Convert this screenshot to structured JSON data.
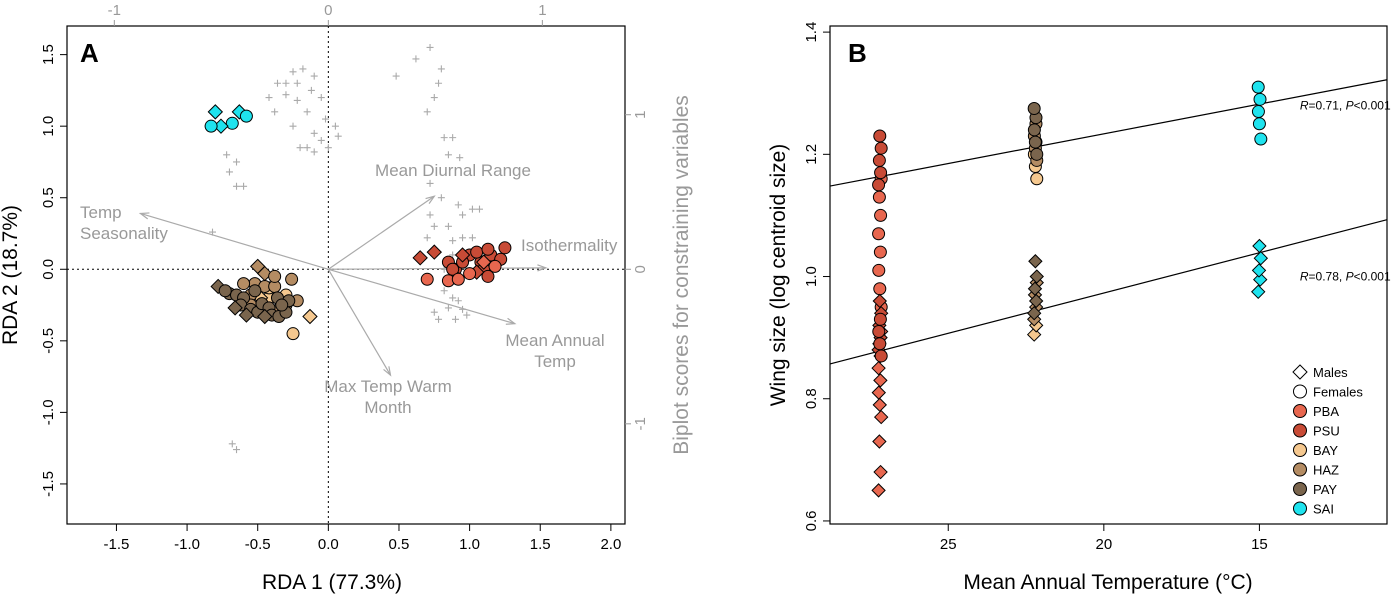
{
  "chart_data": [
    {
      "type": "scatter",
      "panel_label": "A",
      "xlabel": "RDA 1 (77.3%)",
      "ylabel": "RDA 2 (18.7%)",
      "y2label": "Biplot scores for constraining variables",
      "xlim": [
        -1.85,
        2.1
      ],
      "ylim": [
        -1.78,
        1.7
      ],
      "x_ticks": [
        "-1.5",
        "-1.0",
        "-0.5",
        "0.0",
        "0.5",
        "1.0",
        "1.5",
        "2.0"
      ],
      "y_ticks": [
        "-1.5",
        "-1.0",
        "-0.5",
        "0.0",
        "0.5",
        "1.0",
        "1.5"
      ],
      "top_ticks": [
        "-1",
        "0",
        "1"
      ],
      "right_ticks": [
        "-1",
        "0",
        "1"
      ],
      "biplot_arrows": [
        {
          "label_lines": [
            "Temp",
            "Seasonality"
          ],
          "x": -1.33,
          "y": 0.39
        },
        {
          "label_lines": [
            "Mean Diurnal Range"
          ],
          "x": 0.75,
          "y": 0.51
        },
        {
          "label_lines": [
            "Isothermality"
          ],
          "x": 1.54,
          "y": 0.01
        },
        {
          "label_lines": [
            "Mean Annual",
            "Temp"
          ],
          "x": 1.32,
          "y": -0.38
        },
        {
          "label_lines": [
            "Max Temp Warm",
            "Month"
          ],
          "x": 0.44,
          "y": -0.74
        }
      ],
      "crosses": [
        [
          0.72,
          1.55
        ],
        [
          0.62,
          1.47
        ],
        [
          0.48,
          1.35
        ],
        [
          0.8,
          1.4
        ],
        [
          0.78,
          1.3
        ],
        [
          0.75,
          1.2
        ],
        [
          0.7,
          1.1
        ],
        [
          0.82,
          0.92
        ],
        [
          0.88,
          0.92
        ],
        [
          0.85,
          0.8
        ],
        [
          0.93,
          0.78
        ],
        [
          0.72,
          0.6
        ],
        [
          0.8,
          0.5
        ],
        [
          0.92,
          0.45
        ],
        [
          0.95,
          0.38
        ],
        [
          1.02,
          0.42
        ],
        [
          1.07,
          0.42
        ],
        [
          0.72,
          0.38
        ],
        [
          0.7,
          0.22
        ],
        [
          0.75,
          0.3
        ],
        [
          0.85,
          0.3
        ],
        [
          0.88,
          0.2
        ],
        [
          0.88,
          0.1
        ],
        [
          0.95,
          0.22
        ],
        [
          1.02,
          0.22
        ],
        [
          0.82,
          0.0
        ],
        [
          0.82,
          -0.15
        ],
        [
          0.88,
          -0.2
        ],
        [
          0.92,
          -0.22
        ],
        [
          0.95,
          -0.28
        ],
        [
          0.85,
          -0.27
        ],
        [
          0.75,
          -0.3
        ],
        [
          0.78,
          -0.35
        ],
        [
          0.9,
          -0.35
        ],
        [
          0.98,
          -0.32
        ],
        [
          0.88,
          -0.05
        ],
        [
          -0.1,
          1.35
        ],
        [
          -0.18,
          1.4
        ],
        [
          -0.25,
          1.38
        ],
        [
          -0.3,
          1.3
        ],
        [
          -0.22,
          1.3
        ],
        [
          -0.12,
          1.25
        ],
        [
          -0.36,
          1.3
        ],
        [
          -0.42,
          1.2
        ],
        [
          -0.38,
          1.1
        ],
        [
          -0.3,
          1.22
        ],
        [
          -0.22,
          1.18
        ],
        [
          -0.15,
          1.1
        ],
        [
          -0.05,
          1.2
        ],
        [
          -0.02,
          1.05
        ],
        [
          0.05,
          1.0
        ],
        [
          0.07,
          0.93
        ],
        [
          -0.1,
          0.95
        ],
        [
          -0.15,
          0.85
        ],
        [
          -0.2,
          0.85
        ],
        [
          -0.1,
          0.82
        ],
        [
          -0.05,
          0.9
        ],
        [
          0.0,
          0.85
        ],
        [
          -0.25,
          1.0
        ],
        [
          -0.72,
          0.8
        ],
        [
          -0.65,
          0.75
        ],
        [
          -0.7,
          0.68
        ],
        [
          -0.65,
          0.58
        ],
        [
          -0.6,
          0.58
        ],
        [
          -0.82,
          0.26
        ],
        [
          -0.68,
          -1.22
        ],
        [
          -0.65,
          -1.26
        ]
      ],
      "categories": [
        "PBA",
        "PSU",
        "BAY",
        "HAZ",
        "PAY",
        "SAI"
      ],
      "series": [
        {
          "name": "SAI",
          "color": "#1fe3ee",
          "values": [
            [
              -0.63,
              1.1,
              1
            ],
            [
              -0.58,
              1.07,
              0
            ],
            [
              -0.68,
              1.02,
              0
            ],
            [
              -0.76,
              1.0,
              1
            ],
            [
              -0.83,
              1.0,
              0
            ],
            [
              -0.8,
              1.1,
              1
            ]
          ]
        },
        {
          "name": "PSU",
          "color": "#c84b36",
          "values": [
            [
              0.75,
              0.12,
              1
            ],
            [
              1.0,
              0.1,
              0
            ],
            [
              1.08,
              0.05,
              0
            ],
            [
              1.2,
              0.06,
              0
            ],
            [
              1.15,
              0.1,
              0
            ],
            [
              1.25,
              0.15,
              0
            ],
            [
              1.22,
              0.07,
              0
            ],
            [
              1.1,
              0.0,
              0
            ],
            [
              0.85,
              0.05,
              0
            ],
            [
              0.9,
              0.0,
              0
            ],
            [
              0.95,
              0.05,
              0
            ],
            [
              1.05,
              0.12,
              0
            ],
            [
              1.13,
              0.14,
              0
            ],
            [
              0.9,
              -0.06,
              0
            ],
            [
              1.13,
              -0.05,
              0
            ],
            [
              1.05,
              -0.02,
              1
            ],
            [
              0.65,
              0.08,
              1
            ],
            [
              0.95,
              0.1,
              1
            ],
            [
              0.88,
              0.0,
              0
            ]
          ]
        },
        {
          "name": "PBA",
          "color": "#e8674f",
          "values": [
            [
              0.7,
              -0.07,
              0
            ],
            [
              1.0,
              -0.03,
              0
            ],
            [
              1.1,
              0.05,
              1
            ],
            [
              1.18,
              0.02,
              0
            ],
            [
              0.85,
              -0.08,
              0
            ],
            [
              0.92,
              -0.07,
              0
            ]
          ]
        },
        {
          "name": "BAY",
          "color": "#f5c88f",
          "values": [
            [
              -0.25,
              -0.45,
              0
            ],
            [
              -0.13,
              -0.33,
              1
            ],
            [
              -0.42,
              -0.2,
              0
            ],
            [
              -0.48,
              -0.2,
              1
            ],
            [
              -0.3,
              -0.18,
              0
            ],
            [
              -0.42,
              -0.13,
              0
            ]
          ]
        },
        {
          "name": "HAZ",
          "color": "#b48c63",
          "values": [
            [
              -0.52,
              -0.1,
              0
            ],
            [
              -0.45,
              -0.12,
              0
            ],
            [
              -0.38,
              -0.12,
              0
            ],
            [
              -0.26,
              -0.07,
              0
            ],
            [
              -0.5,
              0.02,
              1
            ],
            [
              -0.45,
              -0.03,
              1
            ],
            [
              -0.38,
              -0.05,
              0
            ],
            [
              -0.3,
              -0.25,
              0
            ],
            [
              -0.35,
              -0.28,
              0
            ],
            [
              -0.22,
              -0.22,
              0
            ],
            [
              -0.55,
              -0.18,
              0
            ],
            [
              -0.6,
              -0.1,
              0
            ],
            [
              -0.55,
              -0.25,
              0
            ]
          ]
        },
        {
          "name": "PAY",
          "color": "#7a654d",
          "values": [
            [
              -0.78,
              -0.12,
              1
            ],
            [
              -0.7,
              -0.17,
              0
            ],
            [
              -0.65,
              -0.18,
              0
            ],
            [
              -0.6,
              -0.2,
              0
            ],
            [
              -0.62,
              -0.25,
              0
            ],
            [
              -0.55,
              -0.28,
              0
            ],
            [
              -0.5,
              -0.3,
              0
            ],
            [
              -0.47,
              -0.24,
              0
            ],
            [
              -0.42,
              -0.27,
              0
            ],
            [
              -0.4,
              -0.32,
              0
            ],
            [
              -0.35,
              -0.33,
              0
            ],
            [
              -0.3,
              -0.3,
              0
            ],
            [
              -0.58,
              -0.32,
              1
            ],
            [
              -0.66,
              -0.27,
              1
            ],
            [
              -0.45,
              -0.33,
              1
            ],
            [
              -0.73,
              -0.15,
              0
            ],
            [
              -0.52,
              -0.15,
              0
            ],
            [
              -0.36,
              -0.2,
              0
            ],
            [
              -0.28,
              -0.22,
              0
            ],
            [
              -0.33,
              -0.25,
              0
            ]
          ]
        }
      ]
    },
    {
      "type": "scatter",
      "panel_label": "B",
      "xlabel": "Mean Annual Temperature (°C)",
      "ylabel": "Wing size (log centroid size)",
      "xlim": [
        28.8,
        10.9
      ],
      "ylim": [
        0.595,
        1.41
      ],
      "x_reversed": true,
      "x_ticks": [
        "25",
        "20",
        "15"
      ],
      "y_ticks": [
        "0.6",
        "0.8",
        "1.0",
        "1.2",
        "1.4"
      ],
      "regression_lines": [
        {
          "label_r": "R",
          "label_value": "=0.71, ",
          "label_p": "P",
          "label_tail": "<0.001",
          "x0": 28.8,
          "y0": 1.148,
          "x1": 10.9,
          "y1": 1.322,
          "label_x": 13.7,
          "label_y": 1.28
        },
        {
          "label_r": "R",
          "label_value": "=0.78, ",
          "label_p": "P",
          "label_tail": "<0.001",
          "x0": 28.8,
          "y0": 0.857,
          "x1": 10.9,
          "y1": 1.093,
          "label_x": 13.7,
          "label_y": 1.0
        }
      ],
      "groups": [
        {
          "name": "PBA",
          "color": "#e8674f",
          "x": 27.2,
          "females": [
            0.95,
            0.98,
            1.01,
            1.04,
            1.07,
            1.1,
            1.13,
            1.16
          ],
          "males": [
            0.65,
            0.68,
            0.73,
            0.77,
            0.79,
            0.81,
            0.83,
            0.85,
            0.87,
            0.89,
            0.91
          ]
        },
        {
          "name": "PSU",
          "color": "#c84b36",
          "x": 27.2,
          "females": [
            0.87,
            0.89,
            0.91,
            0.93,
            1.15,
            1.17,
            1.19,
            1.21,
            1.23
          ],
          "males": [
            0.88,
            0.9,
            0.92,
            0.94,
            0.96
          ]
        },
        {
          "name": "BAY",
          "color": "#f5c88f",
          "x": 22.2,
          "females": [
            1.16,
            1.18,
            1.2,
            1.22
          ],
          "males": [
            0.905,
            0.92
          ]
        },
        {
          "name": "HAZ",
          "color": "#b48c63",
          "x": 22.2,
          "females": [
            1.19,
            1.21,
            1.23,
            1.25
          ],
          "males": [
            0.93,
            0.95,
            0.97,
            0.99
          ]
        },
        {
          "name": "PAY",
          "color": "#7a654d",
          "x": 22.2,
          "females": [
            1.2,
            1.22,
            1.24,
            1.26,
            1.275
          ],
          "males": [
            0.94,
            0.96,
            0.98,
            1.0,
            1.025
          ]
        },
        {
          "name": "SAI",
          "color": "#1fe3ee",
          "x": 15.0,
          "females": [
            1.225,
            1.25,
            1.27,
            1.29,
            1.31
          ],
          "males": [
            0.975,
            0.995,
            1.01,
            1.03,
            1.05
          ]
        }
      ],
      "legend": {
        "placement": "bottom-right",
        "shape_entries": [
          "Males",
          "Females"
        ],
        "color_entries": [
          "PBA",
          "PSU",
          "BAY",
          "HAZ",
          "PAY",
          "SAI"
        ]
      }
    }
  ]
}
